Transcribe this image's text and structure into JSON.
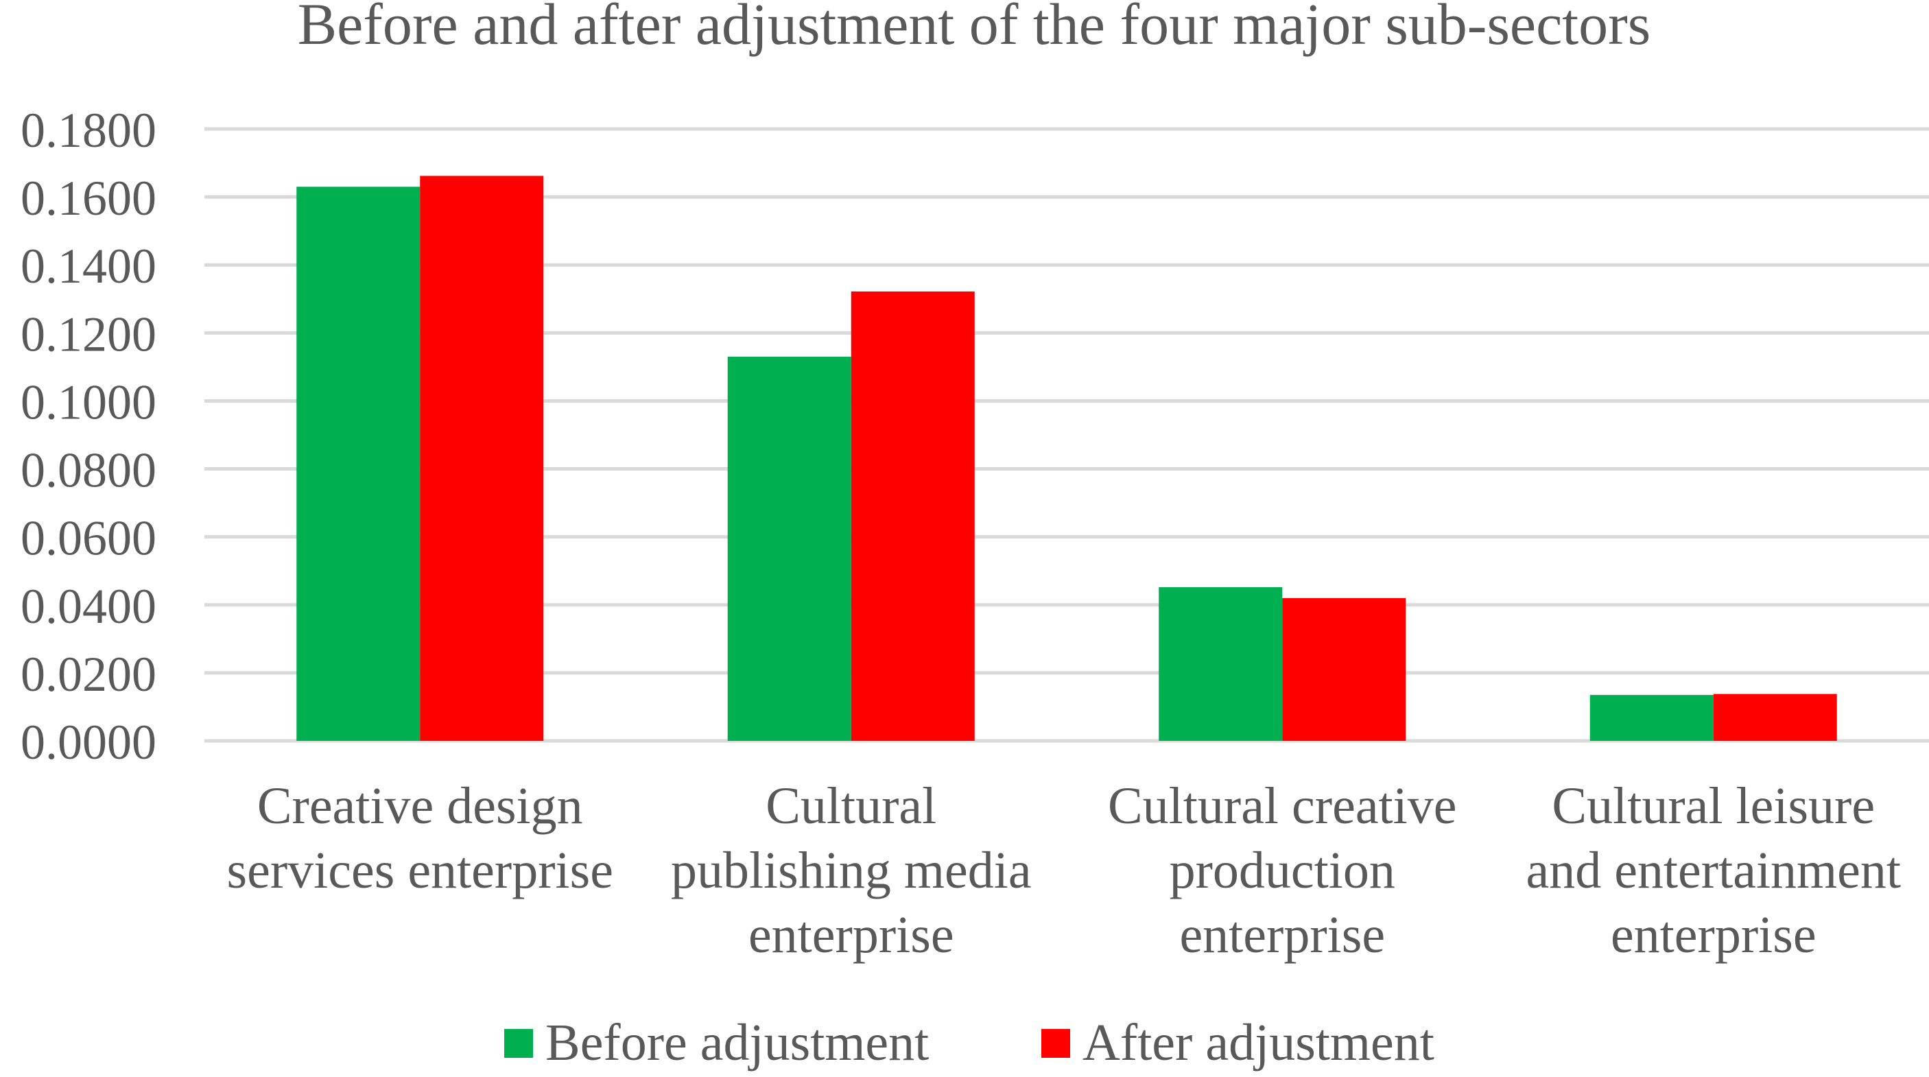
{
  "colors": {
    "series_0": "#00b050",
    "series_1": "#ff0000",
    "gridline": "#d9d9d9",
    "text": "#595959",
    "background": "#ffffff"
  },
  "chart_data": {
    "type": "bar",
    "title": "Before and after adjustment of the four major sub-sectors",
    "xlabel": "",
    "ylabel": "",
    "categories": [
      [
        "Creative design",
        "services enterprise"
      ],
      [
        "Cultural",
        "publishing media",
        "enterprise"
      ],
      [
        "Cultural creative",
        "production",
        "enterprise"
      ],
      [
        "Cultural leisure",
        "and entertainment",
        "enterprise"
      ]
    ],
    "series": [
      {
        "name": "Before adjustment",
        "values": [
          0.163,
          0.113,
          0.0452,
          0.0135
        ]
      },
      {
        "name": "After adjustment",
        "values": [
          0.1662,
          0.1322,
          0.042,
          0.0138
        ]
      }
    ],
    "ylim": [
      0,
      0.18
    ],
    "yticks": [
      "0.0000",
      "0.0200",
      "0.0400",
      "0.0600",
      "0.0800",
      "0.1000",
      "0.1200",
      "0.1400",
      "0.1600",
      "0.1800"
    ],
    "grid": true,
    "legend": "bottom"
  }
}
